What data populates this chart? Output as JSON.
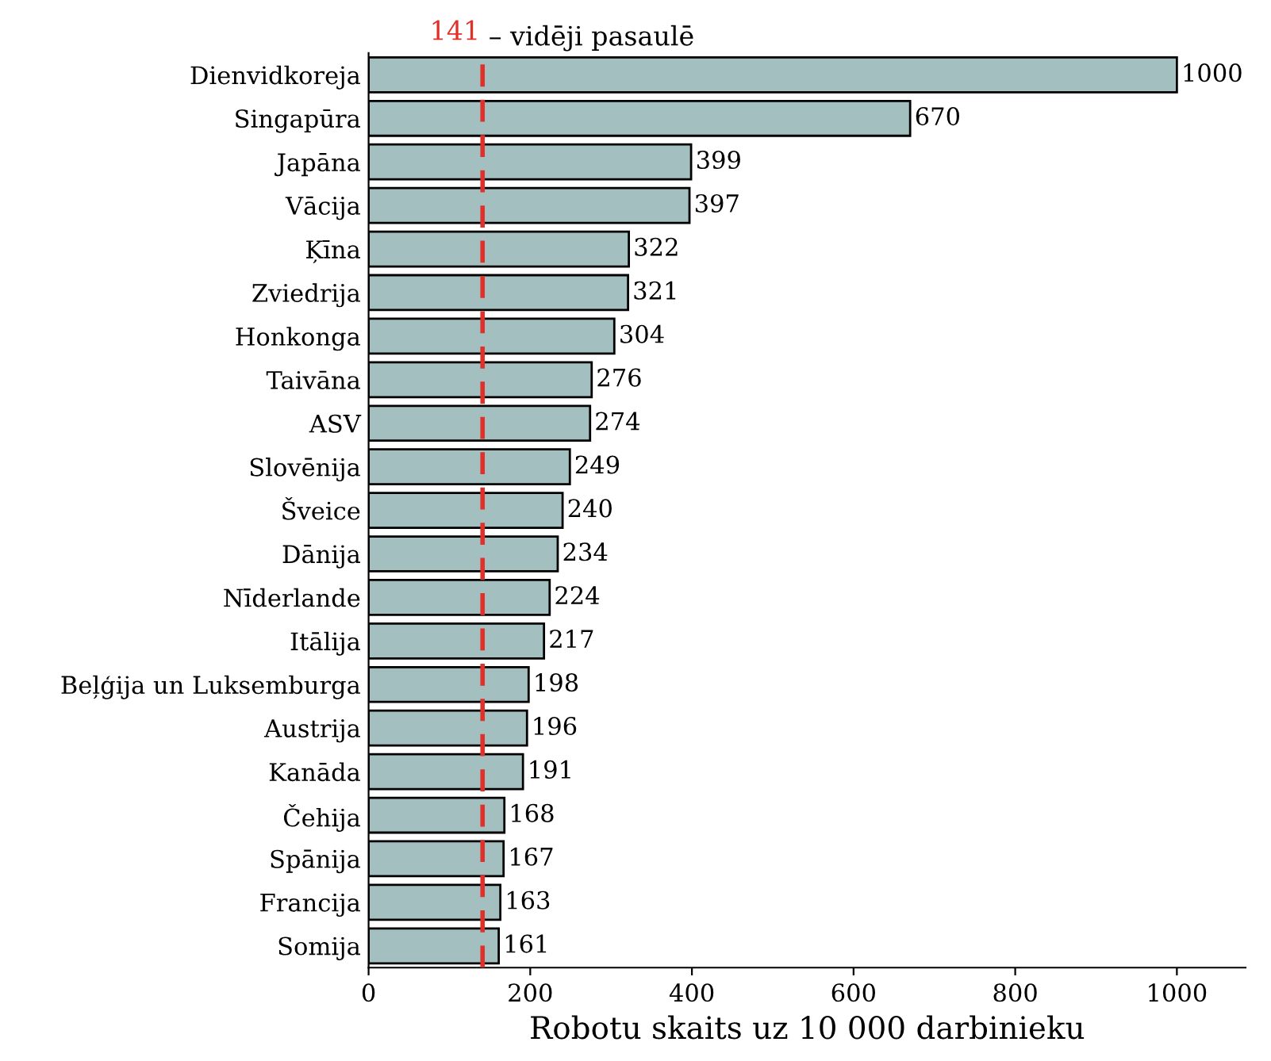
{
  "chart_data": {
    "type": "bar",
    "orientation": "horizontal",
    "xlabel": "Robotu skaits uz 10 000 darbinieku",
    "categories": [
      "Dienvidkoreja",
      "Singapūra",
      "Japāna",
      "Vācija",
      "Ķīna",
      "Zviedrija",
      "Honkonga",
      "Taivāna",
      "ASV",
      "Slovēnija",
      "Šveice",
      "Dānija",
      "Nīderlande",
      "Itālija",
      "Beļģija un Luksemburga",
      "Austrija",
      "Kanāda",
      "Čehija",
      "Spānija",
      "Francija",
      "Somija"
    ],
    "values": [
      1000,
      670,
      399,
      397,
      322,
      321,
      304,
      276,
      274,
      249,
      240,
      234,
      224,
      217,
      198,
      196,
      191,
      168,
      167,
      163,
      161
    ],
    "color": "#a3bfc0",
    "xlim": [
      0,
      1085
    ],
    "xticks": [
      0,
      200,
      400,
      600,
      800,
      1000
    ],
    "data_labels": true,
    "grid": false,
    "legend": false,
    "ref_lines": [
      {
        "axis": "x",
        "value": 141,
        "label": "141 – vidēji pasaulē",
        "color": "#e0302a",
        "line_style": "dashed"
      }
    ]
  }
}
